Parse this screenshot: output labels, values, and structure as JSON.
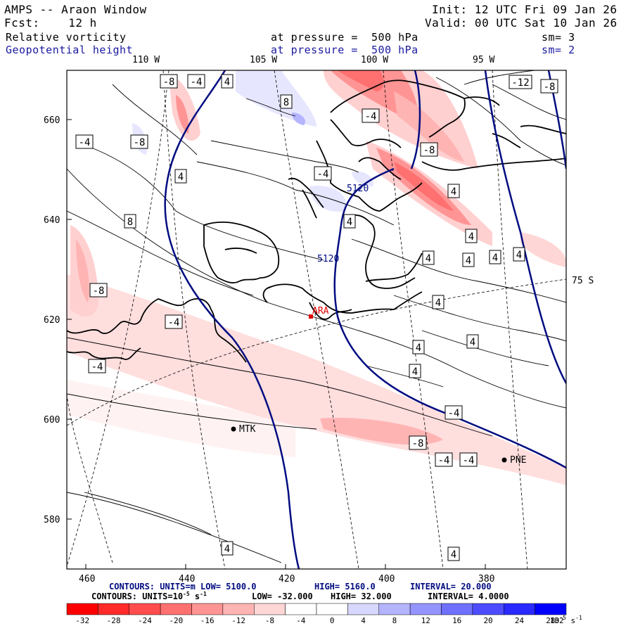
{
  "header": {
    "title": "AMPS -- Araon Window",
    "forecast": "Fcst:    12 h",
    "init": "Init: 12 UTC Fri 09 Jan 26",
    "valid": "Valid: 00 UTC Sat 10 Jan 26",
    "field1_name": "Relative vorticity",
    "field1_level": "at pressure =  500 hPa",
    "field1_sm": "sm= 3",
    "field2_name": "Geopotential height",
    "field2_level": "at pressure =  500 hPa",
    "field2_sm": "sm= 2"
  },
  "longitude_labels": [
    "110 W",
    "105 W",
    "100 W",
    "95 W"
  ],
  "latitude_label": "75 S",
  "y_axis_labels": [
    "660",
    "640",
    "620",
    "600",
    "580"
  ],
  "x_axis_labels": [
    "460",
    "440",
    "420",
    "400",
    "380"
  ],
  "stations": [
    {
      "name": "ARA",
      "color": "#e00000"
    },
    {
      "name": "MTK",
      "color": "#000000"
    },
    {
      "name": "PNE",
      "color": "#000000"
    }
  ],
  "height_contour_labels": [
    "5120",
    "5120"
  ],
  "vorticity_labels": [
    "-8",
    "-4",
    "4",
    "8",
    "4",
    "-4",
    "-8",
    "-12",
    "-8",
    "-4",
    "-8",
    "4",
    "-4",
    "4",
    "8",
    "4",
    "4",
    "4",
    "-8",
    "-4",
    "4",
    "4",
    "4",
    "4",
    "4",
    "4",
    "-4",
    "-4",
    "-8",
    "-4",
    "-4",
    "4",
    "4",
    "4"
  ],
  "footer": {
    "line1_prefix": "CONTOURS:  UNITS=m  LOW=  5100.0",
    "line1_high": "HIGH=  5160.0",
    "line1_interval": "INTERVAL=   20.000",
    "line2_prefix": "CONTOURS:  UNITS=10",
    "line2_exp": "-5",
    "line2_unit": "s",
    "line2_exp2": "-1",
    "line2_low": "LOW= -32.000",
    "line2_high": "HIGH=  32.000",
    "line2_interval": "INTERVAL=   4.0000"
  },
  "colorbar": {
    "colors": [
      "#ff0000",
      "#ff2a2a",
      "#ff4d4d",
      "#ff7070",
      "#ff9494",
      "#ffb4b4",
      "#ffd6d6",
      "#ffffff",
      "#ffffff",
      "#d8d8ff",
      "#b4b4ff",
      "#9494ff",
      "#7070ff",
      "#4d4dff",
      "#2a2aff",
      "#0000ff"
    ],
    "tick_labels": [
      "-32",
      "-28",
      "-24",
      "-20",
      "-16",
      "-12",
      "-8",
      "-4",
      "0",
      "4",
      "8",
      "12",
      "16",
      "20",
      "24",
      "28",
      "32"
    ],
    "unit_base": "10",
    "unit_exp": "-5",
    "unit_s": "s",
    "unit_exp2": "-1"
  }
}
